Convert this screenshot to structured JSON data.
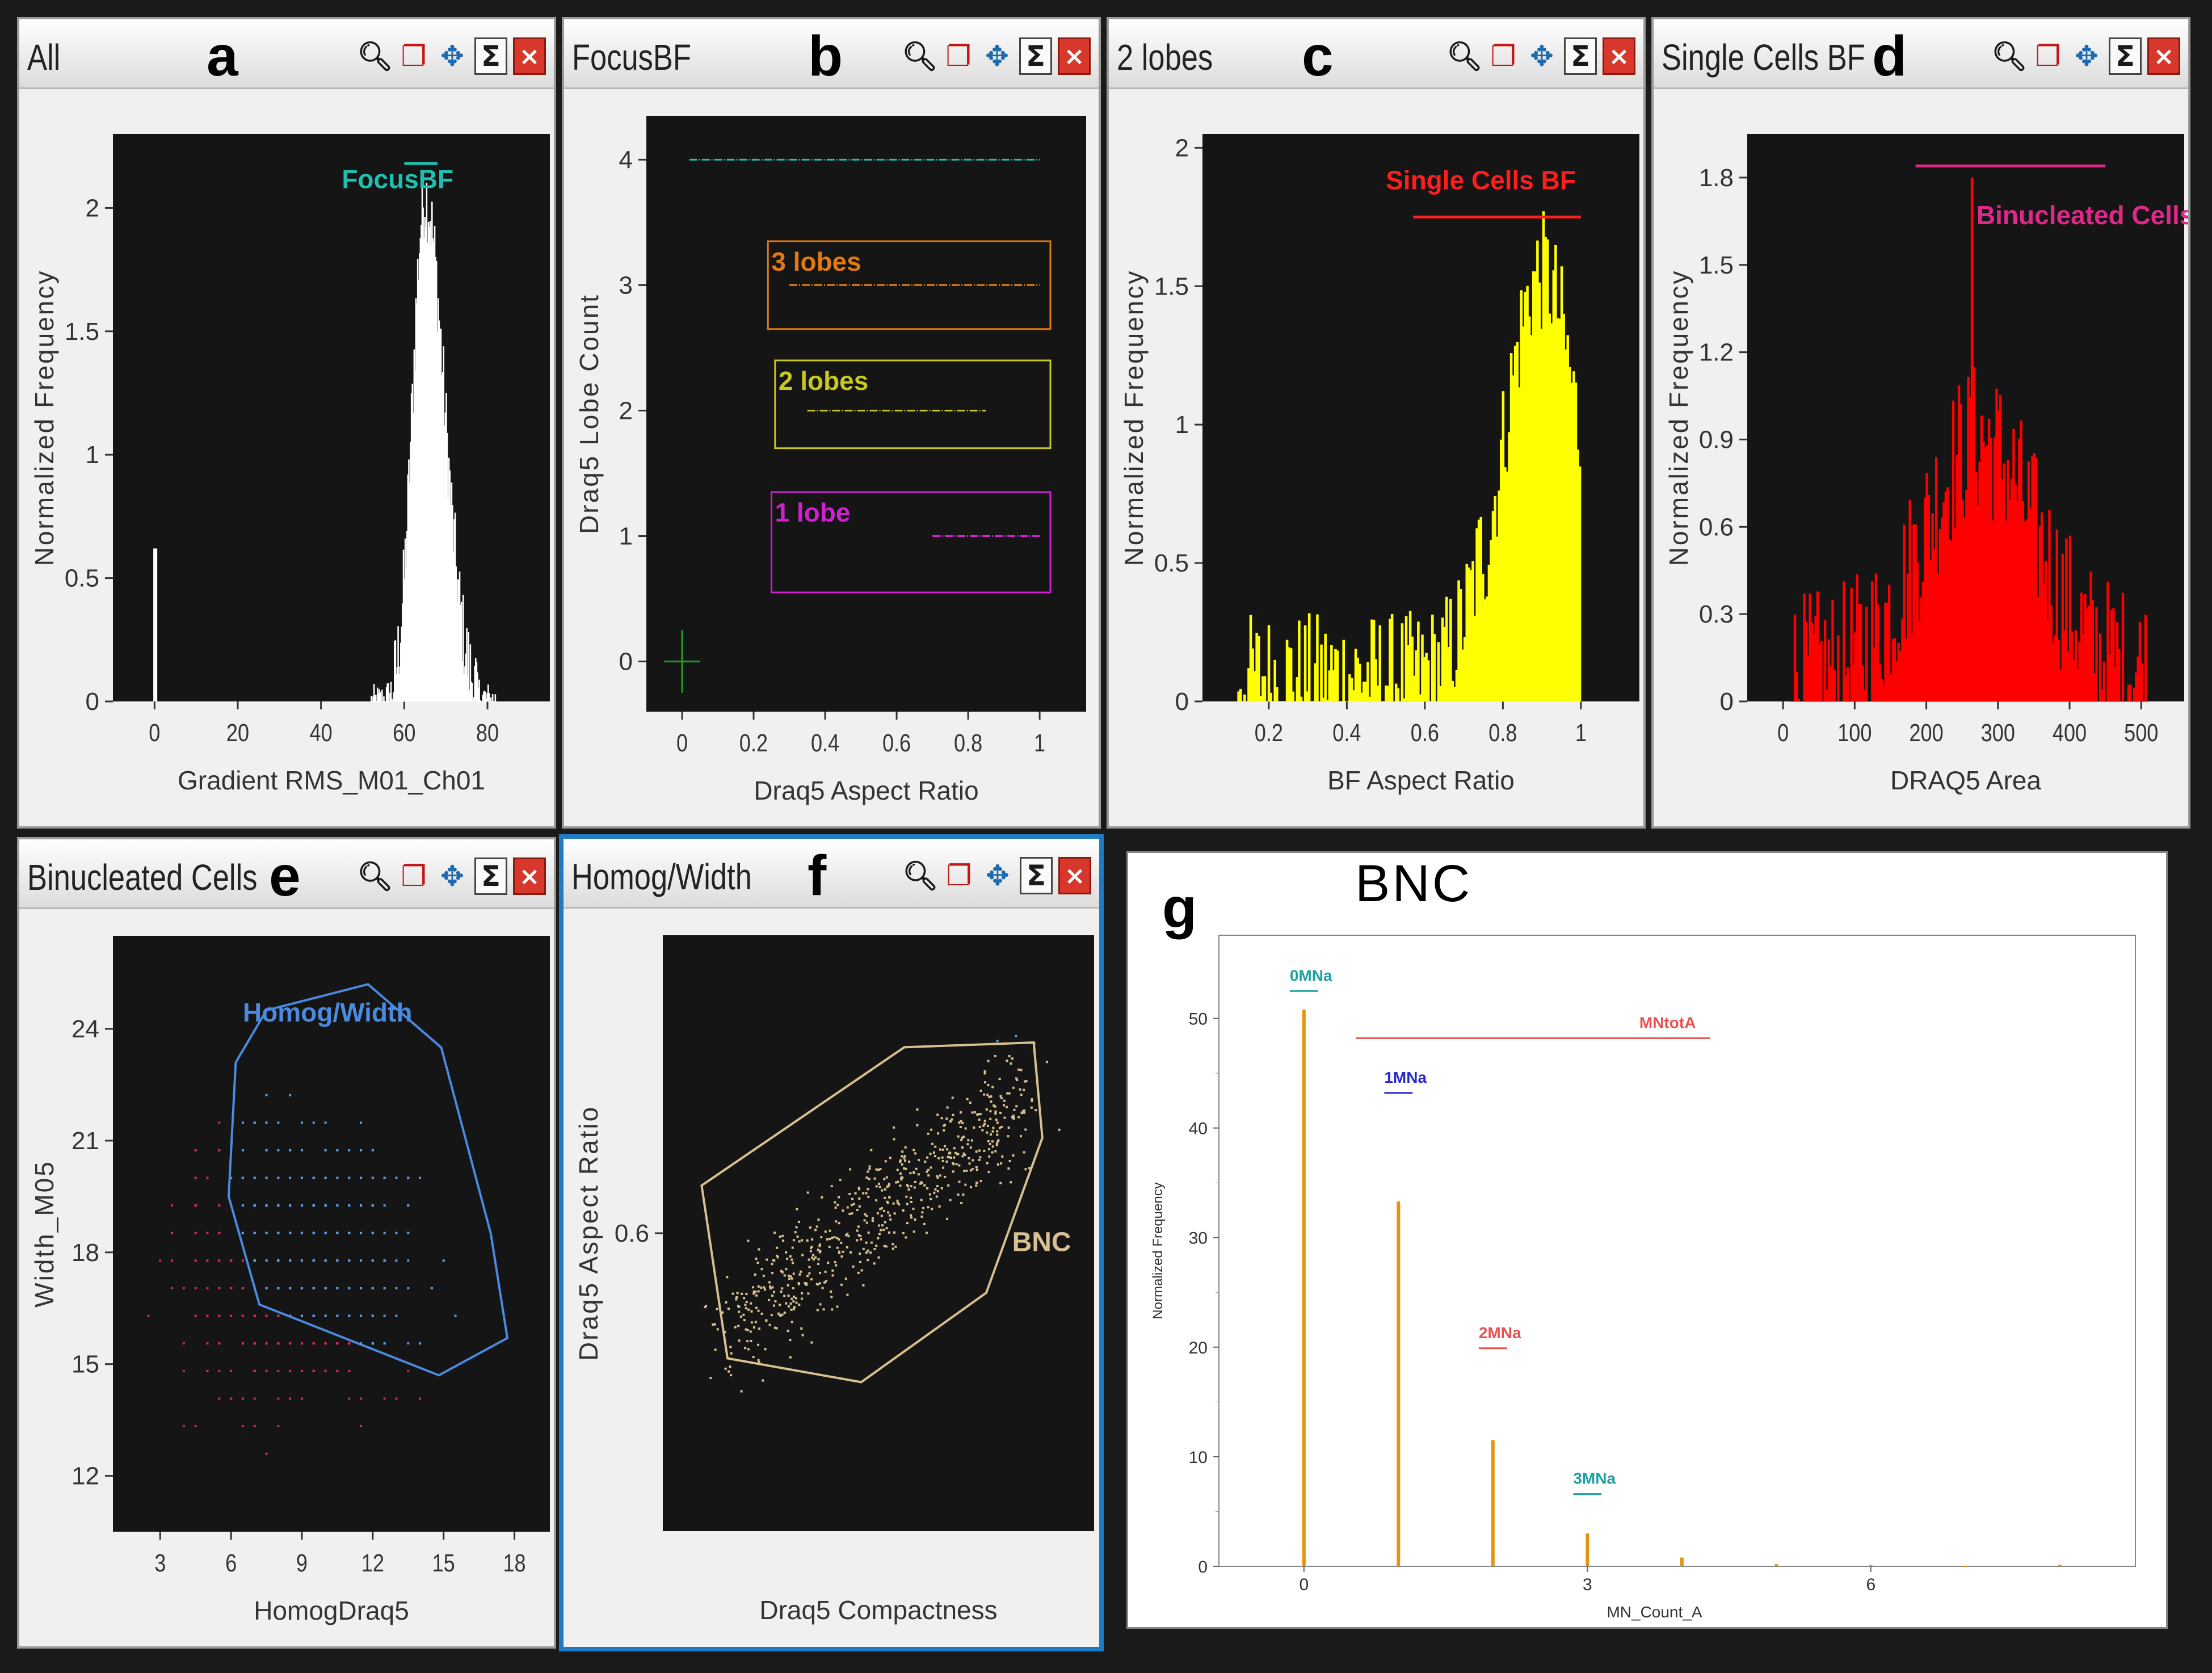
{
  "colors": {
    "plot_bg": "#151515",
    "hist_a": "#ffffff",
    "gate_focus": "#20c0b0",
    "gate_3": "#e07a12",
    "gate_2": "#c8c820",
    "gate_1": "#d020d0",
    "hist_c": "#ffff00",
    "gate_single": "#ff1e1e",
    "hist_d": "#ff0000",
    "gate_binuc": "#e0288a",
    "pts_pink": "#d02860",
    "pts_blue": "#5a9ae6",
    "gate_homog": "#4a8ae0",
    "gate_bnc": "#d8c090",
    "bars_g": "#e59410"
  },
  "icons": [
    "zoom-icon",
    "copy-icon",
    "move-icon",
    "sigma-icon",
    "close-icon"
  ],
  "tools": {
    "sigma": "Σ",
    "close": "×"
  },
  "panels": {
    "a": {
      "title": "All",
      "letter": "a"
    },
    "b": {
      "title": "FocusBF",
      "letter": "b"
    },
    "c": {
      "title": "2 lobes",
      "letter": "c"
    },
    "d": {
      "title": "Single Cells BF",
      "letter": "d"
    },
    "e": {
      "title": "Binucleated Cells",
      "letter": "e"
    },
    "f": {
      "title": "Homog/Width",
      "letter": "f"
    },
    "g": {
      "title": "BNC",
      "letter": "g"
    }
  },
  "chart_data": [
    {
      "panel": "a",
      "type": "bar",
      "xlabel": "Gradient RMS_M01_Ch01",
      "ylabel": "Normalized Frequency",
      "xlim": [
        -10,
        95
      ],
      "ylim": [
        0,
        2.3
      ],
      "xticks": [
        0,
        20,
        40,
        60,
        80
      ],
      "yticks": [
        0,
        0.5,
        1,
        1.5,
        2
      ],
      "ytick_labels": [
        "0",
        "0.5",
        "1",
        "1.5",
        "2"
      ],
      "gates": [
        {
          "name": "FocusBF",
          "x": [
            60,
            68
          ]
        }
      ],
      "note": "isolated bin near 0 (0.62), main distribution 55-80 peaking ~2.08 at x≈65"
    },
    {
      "panel": "b",
      "type": "scatter",
      "xlabel": "Draq5 Aspect Ratio",
      "ylabel": "Draq5 Lobe Count",
      "xlim": [
        -0.1,
        1.13
      ],
      "ylim": [
        -0.4,
        4.35
      ],
      "xticks": [
        0,
        0.2,
        0.4,
        0.6,
        0.8,
        1
      ],
      "yticks": [
        0,
        1,
        2,
        3,
        4
      ],
      "xtick_labels": [
        "0",
        "0.2",
        "0.4",
        "0.6",
        "0.8",
        "1"
      ],
      "ytick_labels": [
        "0",
        "1",
        "2",
        "3",
        "4"
      ],
      "rows": [
        {
          "y": 4,
          "x": [
            0.02,
            1.0
          ]
        },
        {
          "y": 3,
          "x": [
            0.3,
            1.0
          ]
        },
        {
          "y": 2,
          "x": [
            0.35,
            0.85
          ]
        },
        {
          "y": 1,
          "x": [
            0.7,
            1.0
          ]
        }
      ],
      "gates": [
        {
          "name": "3 lobes",
          "x": [
            0.24,
            1.03
          ],
          "y": [
            2.65,
            3.35
          ]
        },
        {
          "name": "2 lobes",
          "x": [
            0.26,
            1.03
          ],
          "y": [
            1.7,
            2.4
          ]
        },
        {
          "name": "1 lobe",
          "x": [
            0.25,
            1.03
          ],
          "y": [
            0.55,
            1.35
          ]
        }
      ]
    },
    {
      "panel": "c",
      "type": "bar",
      "xlabel": "BF Aspect Ratio",
      "ylabel": "Normalized Frequency",
      "xlim": [
        0.03,
        1.15
      ],
      "ylim": [
        0,
        2.05
      ],
      "xticks": [
        0.2,
        0.4,
        0.6,
        0.8,
        1
      ],
      "yticks": [
        0,
        0.5,
        1,
        1.5,
        2
      ],
      "xtick_labels": [
        "0.2",
        "0.4",
        "0.6",
        "0.8",
        "1"
      ],
      "ytick_labels": [
        "0",
        "0.5",
        "1",
        "1.5",
        "2"
      ],
      "gates": [
        {
          "name": "Single Cells BF",
          "x": [
            0.57,
            1.0
          ]
        }
      ],
      "note": "left-skewed distribution peaking ~1.92 at x≈0.9"
    },
    {
      "panel": "d",
      "type": "bar",
      "xlabel": "DRAQ5 Area",
      "ylabel": "Normalized Frequency",
      "xlim": [
        -50,
        560
      ],
      "ylim": [
        0,
        1.95
      ],
      "xticks": [
        0,
        100,
        200,
        300,
        400,
        500
      ],
      "yticks": [
        0,
        0.3,
        0.6,
        0.9,
        1.2,
        1.5,
        1.8
      ],
      "ytick_labels": [
        "0",
        "0.3",
        "0.6",
        "0.9",
        "1.2",
        "1.5",
        "1.8"
      ],
      "gates": [
        {
          "name": "Binucleated Cells",
          "x": [
            185,
            450
          ]
        }
      ],
      "note": "distribution ~10-510, peaking ~1.8 at x≈265"
    },
    {
      "panel": "e",
      "type": "scatter",
      "xlabel": "HomogDraq5",
      "ylabel": "Width_M05",
      "xlim": [
        1,
        19.5
      ],
      "ylim": [
        10.5,
        26.5
      ],
      "xticks": [
        3,
        6,
        9,
        12,
        15,
        18
      ],
      "yticks": [
        12,
        15,
        18,
        21,
        24
      ],
      "gates": [
        {
          "name": "Homog/Width",
          "polygon": [
            [
              7.5,
              24.5
            ],
            [
              11.8,
              25.2
            ],
            [
              14.9,
              23.5
            ],
            [
              17,
              18.5
            ],
            [
              17.7,
              15.7
            ],
            [
              14.8,
              14.7
            ],
            [
              7.2,
              16.6
            ],
            [
              5.9,
              19.5
            ],
            [
              6.2,
              23.1
            ]
          ]
        }
      ]
    },
    {
      "panel": "f",
      "type": "scatter",
      "xlabel": "Draq5 Compactness",
      "ylabel": "Draq5 Aspect Ratio",
      "xlim": [
        0,
        10
      ],
      "ylim": [
        0.35,
        0.85
      ],
      "yticks": [
        0.6
      ],
      "ytick_labels": [
        "0.6"
      ],
      "gates": [
        {
          "name": "BNC",
          "polygon": [
            [
              0.9,
              0.64
            ],
            [
              5.6,
              0.756
            ],
            [
              8.6,
              0.76
            ],
            [
              8.8,
              0.68
            ],
            [
              7.5,
              0.55
            ],
            [
              4.6,
              0.475
            ],
            [
              1.5,
              0.495
            ]
          ]
        }
      ]
    },
    {
      "panel": "g",
      "type": "bar",
      "title": "BNC",
      "xlabel": "MN_Count_A",
      "ylabel": "Normalized Frequency",
      "xlim": [
        -0.9,
        8.8
      ],
      "ylim": [
        0,
        55
      ],
      "categories": [
        0,
        1,
        2,
        3,
        4,
        5,
        6,
        7,
        8
      ],
      "values": [
        50.8,
        33.3,
        11.5,
        3.0,
        0.8,
        0.2,
        0.1,
        0.05,
        0.15
      ],
      "xticks": [
        0,
        3,
        6
      ],
      "yticks": [
        0,
        10,
        20,
        30,
        40,
        50
      ],
      "gates": [
        {
          "name": "0MNa",
          "x": [
            -0.15,
            0.15
          ],
          "y": 52.5
        },
        {
          "name": "MNtotA",
          "x": [
            0.55,
            4.3
          ],
          "y": 48.2
        },
        {
          "name": "1MNa",
          "x": [
            0.85,
            1.15
          ],
          "y": 43.2
        },
        {
          "name": "2MNa",
          "x": [
            1.85,
            2.15
          ],
          "y": 19.9
        },
        {
          "name": "3MNa",
          "x": [
            2.85,
            3.15
          ],
          "y": 6.6
        }
      ]
    }
  ]
}
